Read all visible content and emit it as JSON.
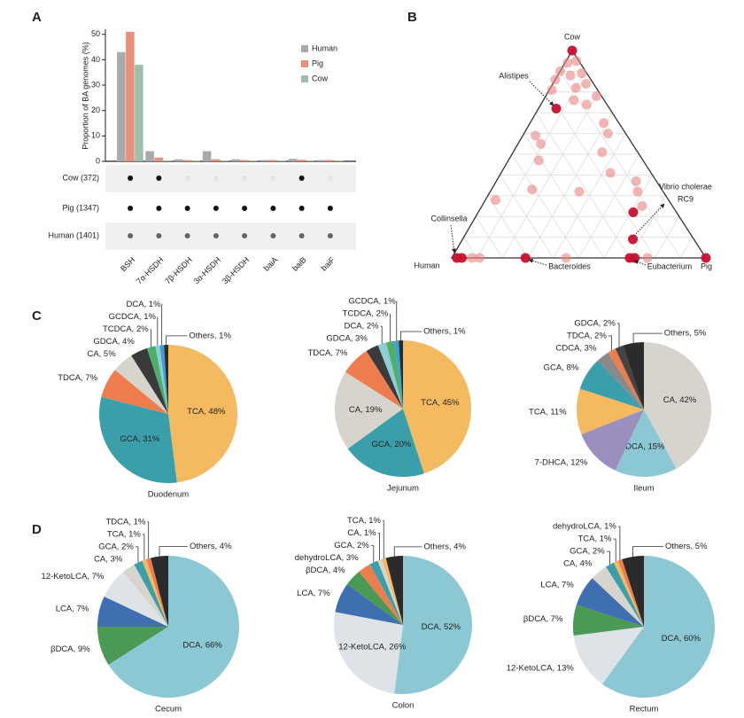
{
  "panel_labels": [
    "A",
    "B",
    "C",
    "D"
  ],
  "chart_data": [
    {
      "type": "bar",
      "ylabel": "Proportion of BA genomes (%)",
      "categories": [
        "BSH",
        "7α-HSDH",
        "7β-HSDH",
        "3α-HSDH",
        "3β-HSDH",
        "baiA",
        "baiB",
        "baiF"
      ],
      "series": [
        {
          "name": "Human",
          "color": "#a9a9a9",
          "values": [
            43,
            4,
            0.8,
            4,
            0.8,
            0.5,
            1,
            0.5
          ]
        },
        {
          "name": "Pig",
          "color": "#e8907e",
          "values": [
            51,
            1.5,
            0.5,
            0.8,
            0.5,
            0.5,
            0.6,
            0.5
          ]
        },
        {
          "name": "Cow",
          "color": "#9fbfaa",
          "values": [
            38,
            0.3,
            0.2,
            0.3,
            0.2,
            0.2,
            0.3,
            0.2
          ]
        }
      ],
      "ylim": [
        0,
        52
      ],
      "yticks": [
        0,
        10,
        20,
        30,
        40,
        50
      ],
      "matrix": [
        {
          "name": "Cow (372)",
          "color": "#111111",
          "present": [
            true,
            true,
            false,
            false,
            false,
            false,
            true,
            false
          ]
        },
        {
          "name": "Pig (1347)",
          "color": "#111111",
          "present": [
            true,
            true,
            true,
            true,
            true,
            true,
            true,
            true
          ]
        },
        {
          "name": "Human (1401)",
          "color": "#666666",
          "present": [
            true,
            true,
            true,
            true,
            true,
            true,
            true,
            true
          ]
        }
      ]
    },
    {
      "type": "ternary",
      "axes": [
        "Human",
        "Pig",
        "Cow"
      ],
      "annotations": [
        "Alistipes",
        "Collinsella",
        "Bacteroides",
        "Eubacterium",
        "Vibrio cholerae",
        "RC9"
      ],
      "series": [
        {
          "color": "#e8857f",
          "human": [
            0.05,
            0.01,
            0.1,
            0.02,
            0.14,
            0.07,
            0.03,
            0.18,
            0.08,
            0.02,
            0.12,
            0.08,
            0.06,
            0.07,
            0.36,
            0.36,
            0.14,
            0.41,
            0.16,
            0.51,
            0.33,
            0.08,
            0.1,
            0.68,
            0.12,
            0.92,
            0.89,
            0.55,
            0.23
          ],
          "pig": [
            0.01,
            0.04,
            0.0,
            0.09,
            0.0,
            0.05,
            0.13,
            0.01,
            0.1,
            0.2,
            0.12,
            0.18,
            0.29,
            0.33,
            0.05,
            0.09,
            0.35,
            0.12,
            0.43,
            0.16,
            0.35,
            0.55,
            0.58,
            0.04,
            0.63,
            0.08,
            0.11,
            0.45,
            0.77
          ],
          "cow": [
            0.94,
            0.95,
            0.9,
            0.89,
            0.86,
            0.88,
            0.84,
            0.81,
            0.82,
            0.78,
            0.76,
            0.74,
            0.65,
            0.6,
            0.59,
            0.55,
            0.51,
            0.47,
            0.41,
            0.33,
            0.32,
            0.37,
            0.32,
            0.28,
            0.25,
            0,
            0,
            0,
            0
          ]
        },
        {
          "color": "#c8102e",
          "human": [
            0,
            0.21,
            0.17,
            0.24,
            0.98,
            0.96,
            0.71,
            0.3,
            0.28,
            0
          ],
          "pig": [
            0,
            0.07,
            0.61,
            0.67,
            0.02,
            0.04,
            0.29,
            0.7,
            0.72,
            1
          ],
          "cow": [
            1,
            0.72,
            0.22,
            0.09,
            0,
            0,
            0,
            0,
            0,
            0
          ]
        }
      ]
    },
    {
      "type": "pie",
      "title": "Duodenum",
      "values": [
        48,
        31,
        7,
        5,
        4,
        2,
        1,
        1,
        1
      ],
      "value_labels": [
        "TCA, 48%",
        "GCA, 31%",
        "TDCA, 7%",
        "CA, 5%",
        "GDCA, 4%",
        "TCDCA, 2%",
        "GCDCA, 1%",
        "DCA, 1%",
        "Others, 1%"
      ],
      "colors": [
        "#f5b95f",
        "#3a9faa",
        "#ee7d4e",
        "#d6d4cc",
        "#3a3a3a",
        "#4caf6a",
        "#8ecdd8",
        "#3d9fd9",
        "#2b2b2b"
      ]
    },
    {
      "type": "pie",
      "title": "Jejunum",
      "values": [
        45,
        20,
        19,
        7,
        3,
        2,
        2,
        1,
        1
      ],
      "value_labels": [
        "TCA, 45%",
        "GCA, 20%",
        "CA, 19%",
        "TDCA, 7%",
        "GDCA, 3%",
        "DCA, 2%",
        "TCDCA, 2%",
        "GCDCA, 1%",
        "Others, 1%"
      ],
      "colors": [
        "#f5b95f",
        "#3a9faa",
        "#d6d4cc",
        "#ee7d4e",
        "#3a3a3a",
        "#8ecdd8",
        "#4caf6a",
        "#3d9fd9",
        "#2b2b2b"
      ]
    },
    {
      "type": "pie",
      "title": "Ileum",
      "values": [
        42,
        15,
        12,
        11,
        8,
        3,
        2,
        2,
        5
      ],
      "value_labels": [
        "CA, 42%",
        "DCA, 15%",
        "7-DHCA, 12%",
        "TCA, 11%",
        "GCA, 8%",
        "CDCA, 3%",
        "TDCA, 2%",
        "GDCA, 2%",
        "Others, 5%"
      ],
      "colors": [
        "#d6d4cc",
        "#8cc8d4",
        "#9b8fc0",
        "#f5b95f",
        "#3a9faa",
        "#8a8a8a",
        "#ee7d4e",
        "#444444",
        "#2b2b2b"
      ]
    },
    {
      "type": "pie",
      "title": "Cecum",
      "values": [
        66,
        9,
        7,
        7,
        3,
        2,
        1,
        1,
        4
      ],
      "value_labels": [
        "DCA, 66%",
        "βDCA, 9%",
        "LCA, 7%",
        "12-KetoLCA, 7%",
        "CA, 3%",
        "GCA, 2%",
        "TCA, 1%",
        "TDCA, 1%",
        "Others, 4%"
      ],
      "colors": [
        "#8cc8d4",
        "#4a9a55",
        "#3f6fb0",
        "#dde3e6",
        "#d6d4cc",
        "#3a9faa",
        "#f5b95f",
        "#ee7d4e",
        "#2b2b2b"
      ]
    },
    {
      "type": "pie",
      "title": "Colon",
      "values": [
        52,
        26,
        7,
        4,
        3,
        2,
        1,
        1,
        4
      ],
      "value_labels": [
        "DCA, 52%",
        "12-KetoLCA, 26%",
        "LCA, 7%",
        "βDCA, 4%",
        "dehydroLCA, 3%",
        "GCA, 2%",
        "CA, 1%",
        "TCA, 1%",
        "Others, 4%"
      ],
      "colors": [
        "#8cc8d4",
        "#dde3e6",
        "#3f6fb0",
        "#4a9a55",
        "#ee7d4e",
        "#3a9faa",
        "#d6d4cc",
        "#f5b95f",
        "#2b2b2b"
      ]
    },
    {
      "type": "pie",
      "title": "Rectum",
      "values": [
        60,
        13,
        7,
        7,
        4,
        2,
        1,
        1,
        5
      ],
      "value_labels": [
        "DCA, 60%",
        "12-KetoLCA, 13%",
        "βDCA, 7%",
        "LCA, 7%",
        "CA, 4%",
        "GCA, 2%",
        "TCA, 1%",
        "dehydroLCA, 1%",
        "Others, 5%"
      ],
      "colors": [
        "#8cc8d4",
        "#dde3e6",
        "#4a9a55",
        "#3f6fb0",
        "#d6d4cc",
        "#3a9faa",
        "#f5b95f",
        "#ee7d4e",
        "#2b2b2b"
      ]
    }
  ]
}
